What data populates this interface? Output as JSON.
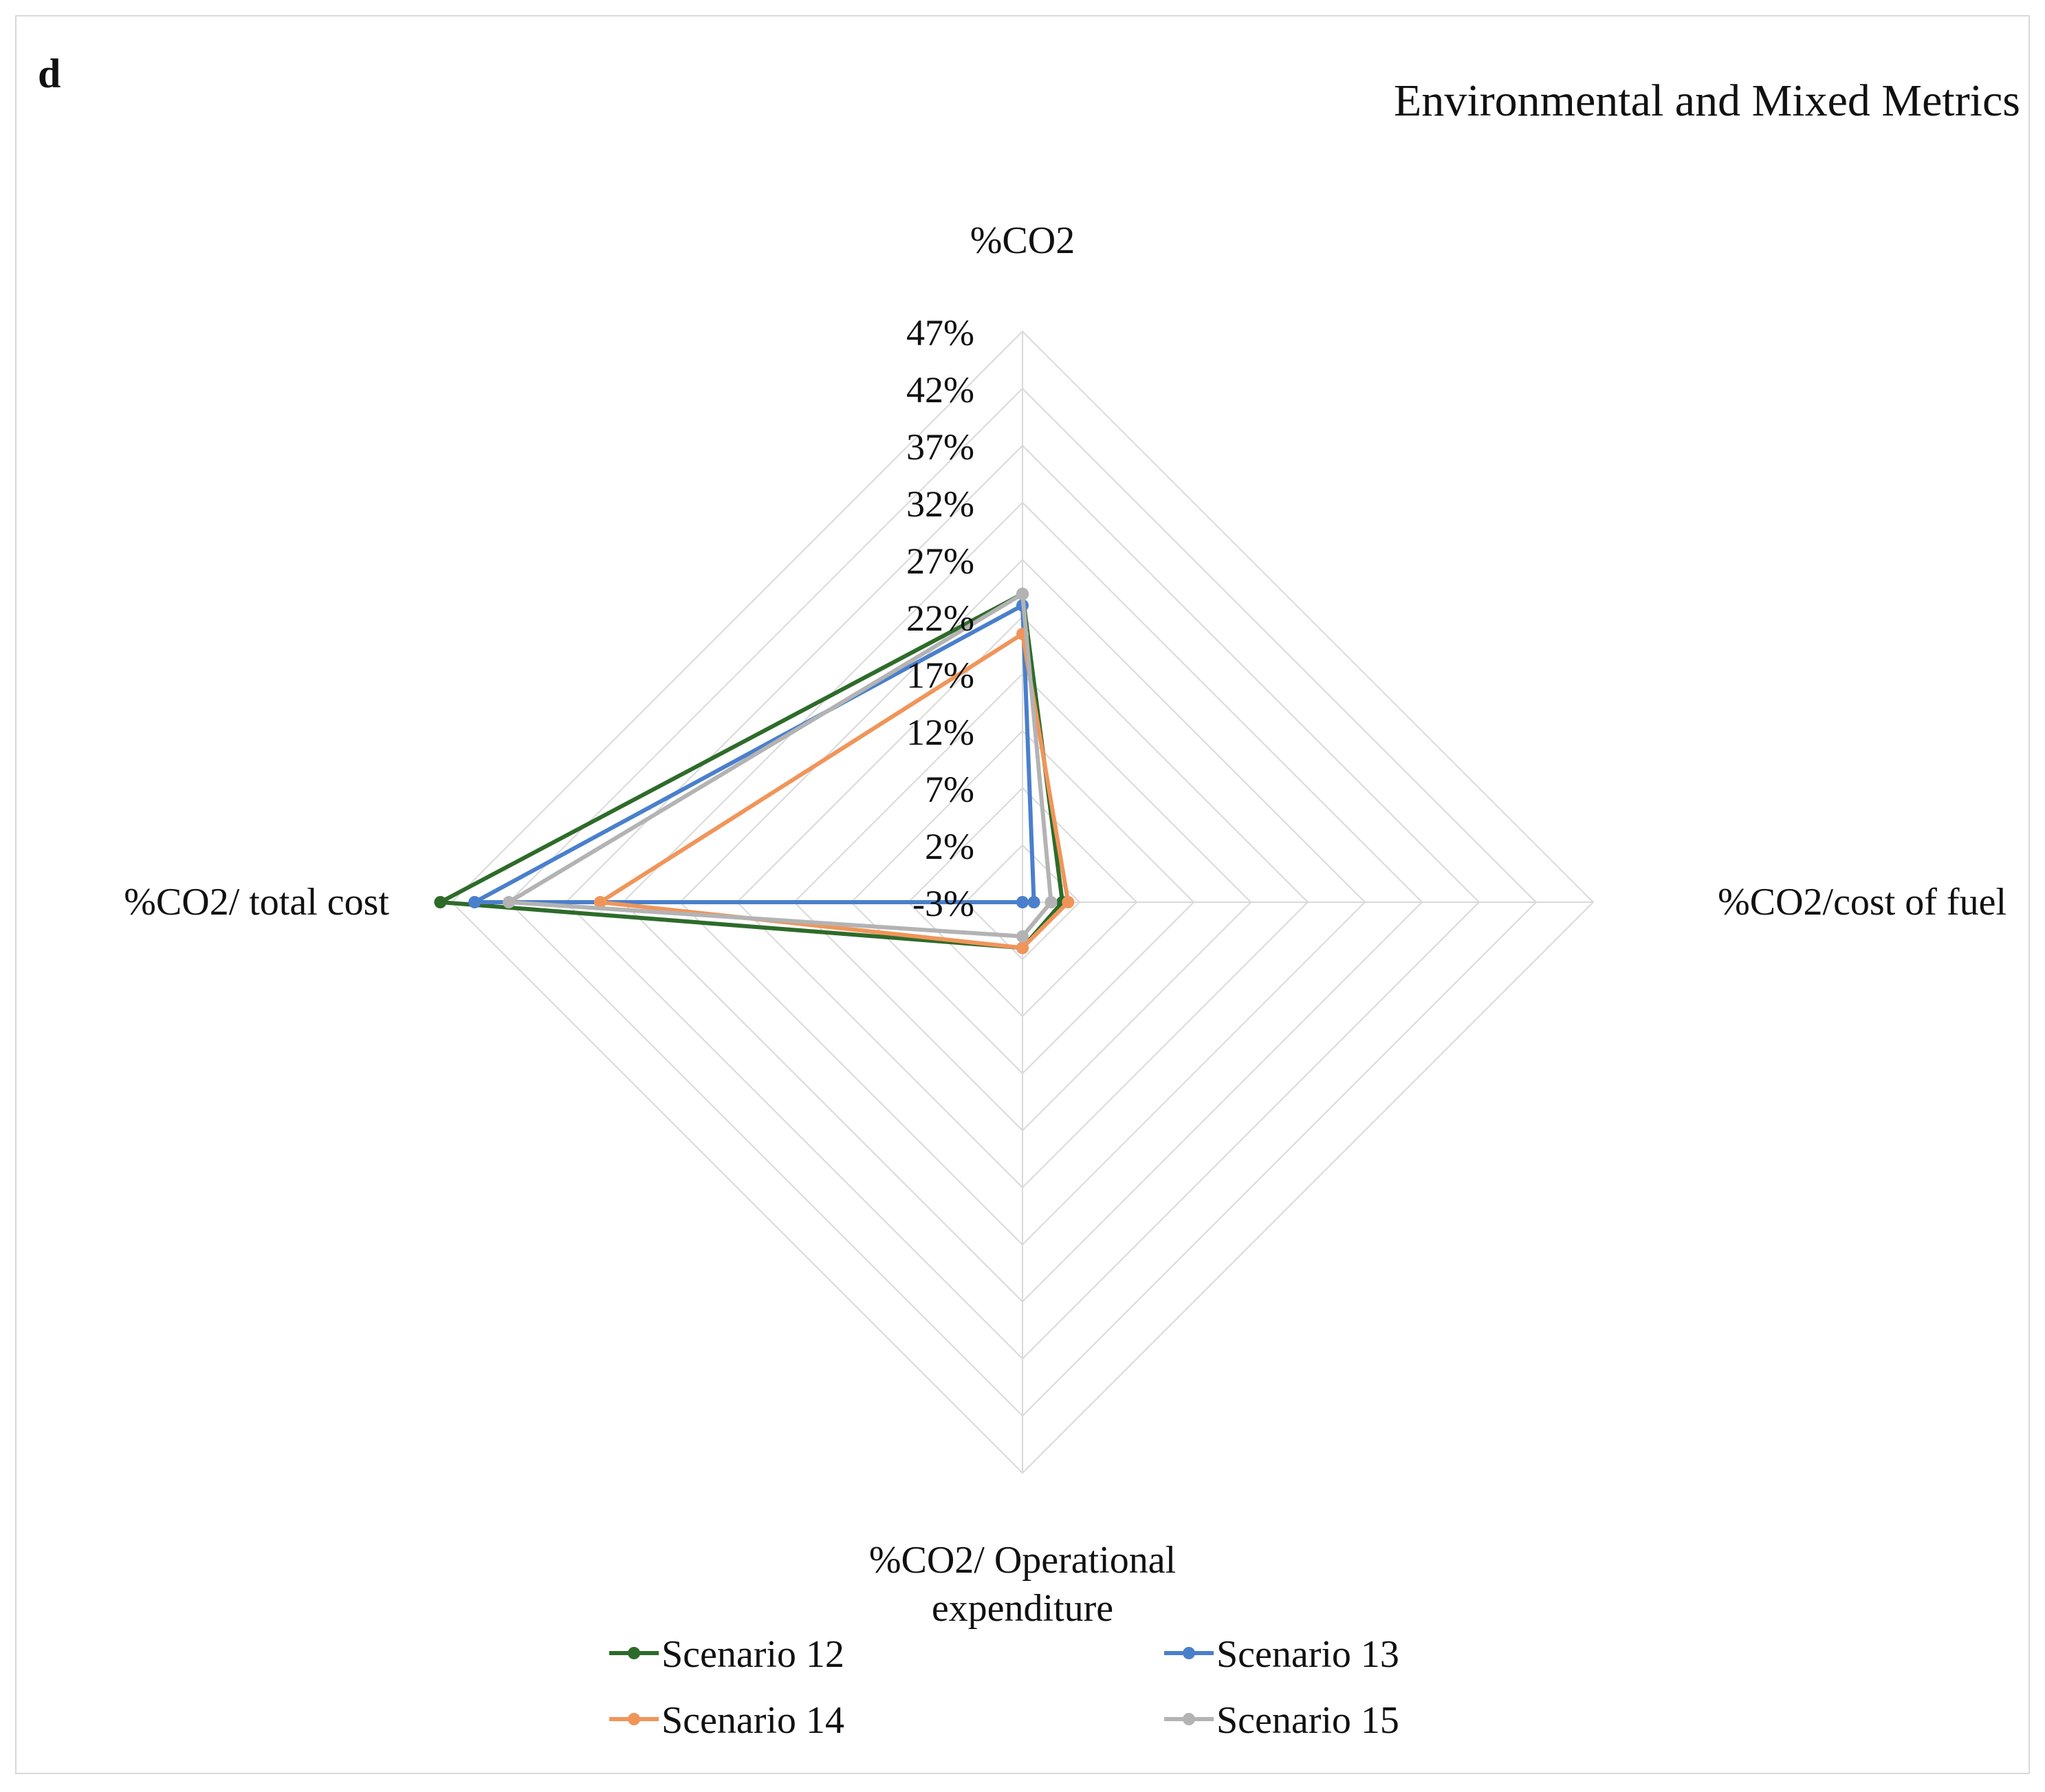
{
  "panel_label": "d",
  "chart_data": {
    "type": "radar",
    "title": "Environmental and Mixed Metrics",
    "axes": [
      "%CO2",
      "%CO2/cost of fuel",
      "%CO2/ Operational expenditure",
      "%CO2/ total cost"
    ],
    "axis_label_lines": [
      [
        "%CO2"
      ],
      [
        "%CO2/cost of fuel"
      ],
      [
        "%CO2/ Operational",
        "expenditure"
      ],
      [
        "%CO2/ total cost"
      ]
    ],
    "ticks": [
      "-3%",
      "2%",
      "7%",
      "12%",
      "17%",
      "22%",
      "27%",
      "32%",
      "37%",
      "42%",
      "47%"
    ],
    "range": [
      -3,
      47
    ],
    "grid": true,
    "legend_position": "bottom",
    "series": [
      {
        "name": "Scenario 12",
        "color": "#2e6b2a",
        "values": [
          24,
          0.5,
          1,
          48
        ]
      },
      {
        "name": "Scenario 13",
        "color": "#4a7fcc",
        "values": [
          23,
          -2,
          -3,
          45
        ]
      },
      {
        "name": "Scenario 14",
        "color": "#f0955a",
        "values": [
          20.5,
          1,
          1,
          34
        ]
      },
      {
        "name": "Scenario 15",
        "color": "#b3b3b3",
        "values": [
          24,
          -0.5,
          0,
          42
        ]
      }
    ]
  }
}
